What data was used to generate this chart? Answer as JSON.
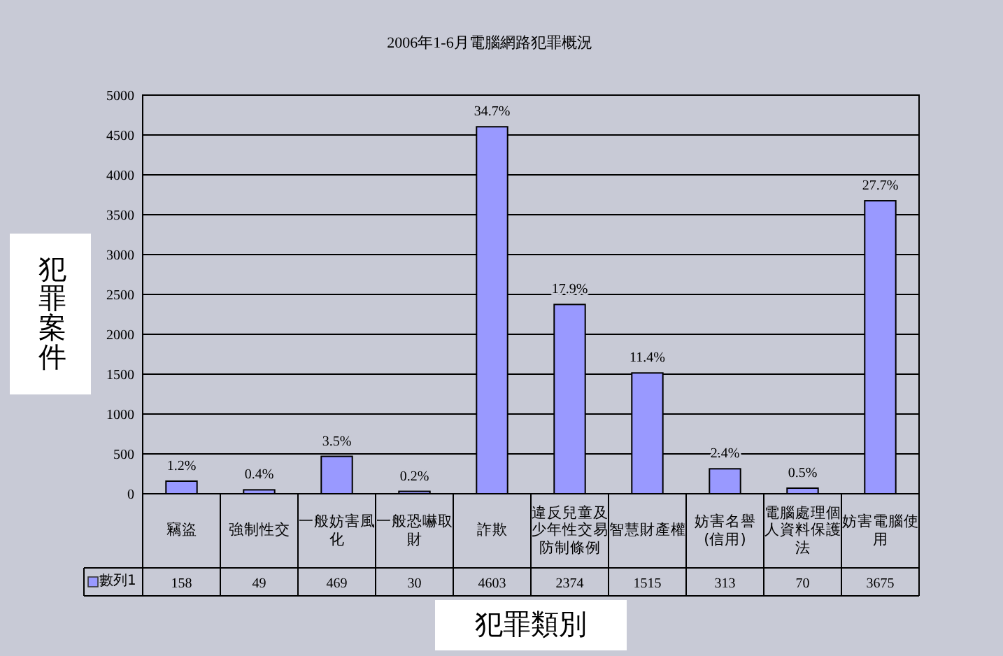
{
  "chart_data": {
    "type": "bar",
    "title": "2006年1-6月電腦網路犯罪概況",
    "xlabel": "犯罪類別",
    "ylabel": "犯罪案件",
    "categories": [
      "竊盜",
      "強制性交",
      "一般妨害風化",
      "一般恐嚇取財",
      "詐欺",
      "違反兒童及少年性交易防制條例",
      "智慧財產權",
      "妨害名譽(信用)",
      "電腦處理個人資料保護法",
      "妨害電腦使用"
    ],
    "series": [
      {
        "name": "數列1",
        "color": "#9999ff",
        "values": [
          158,
          49,
          469,
          30,
          4603,
          2374,
          1515,
          313,
          70,
          3675
        ]
      }
    ],
    "annotations": [
      {
        "text": "1.2%",
        "x": "竊盜",
        "y": 158
      },
      {
        "text": "0.4%",
        "x": "強制性交",
        "y": 49
      },
      {
        "text": "3.5%",
        "x": "一般妨害風化",
        "y": 469
      },
      {
        "text": "0.2%",
        "x": "一般恐嚇取財",
        "y": 30
      },
      {
        "text": "34.7%",
        "x": "詐欺",
        "y": 4603
      },
      {
        "text": "17.9%",
        "x": "違反兒童及少年性交易防制條例",
        "y": 2374
      },
      {
        "text": "11.4%",
        "x": "智慧財產權",
        "y": 1515
      },
      {
        "text": "2.4%",
        "x": "妨害名譽(信用)",
        "y": 313
      },
      {
        "text": "0.5%",
        "x": "電腦處理個人資料保護法",
        "y": 70
      },
      {
        "text": "27.7%",
        "x": "妨害電腦使用",
        "y": 3675
      }
    ],
    "ylim": [
      0,
      5000
    ],
    "yticks": [
      0,
      500,
      1000,
      1500,
      2000,
      2500,
      3000,
      3500,
      4000,
      4500,
      5000
    ],
    "grid": "y",
    "legend": "bottom",
    "data_labels": true
  }
}
